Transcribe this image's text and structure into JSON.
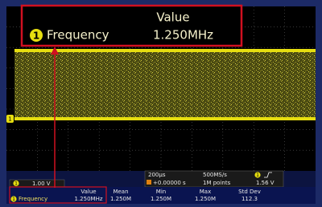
{
  "callout": {
    "header": "Value",
    "channel": "1",
    "label": "Frequency",
    "value": "1.250MHz"
  },
  "waveform_marker": "1",
  "status": {
    "channel": "1",
    "scale": "1.00 V",
    "timebase": "200µs",
    "sample_rate": "500MS/s",
    "trigger_channel": "1",
    "trigger_position": "+0.00000 s",
    "record_length": "1M points",
    "trigger_level": "1.56 V"
  },
  "measurements": {
    "headers": [
      "Value",
      "Mean",
      "Min",
      "Max",
      "Std Dev"
    ],
    "rows": [
      {
        "channel": "1",
        "label": "Frequency",
        "values": [
          "1.250MHz",
          "1.250M",
          "1.250M",
          "1.250M",
          "112.3"
        ]
      }
    ]
  }
}
